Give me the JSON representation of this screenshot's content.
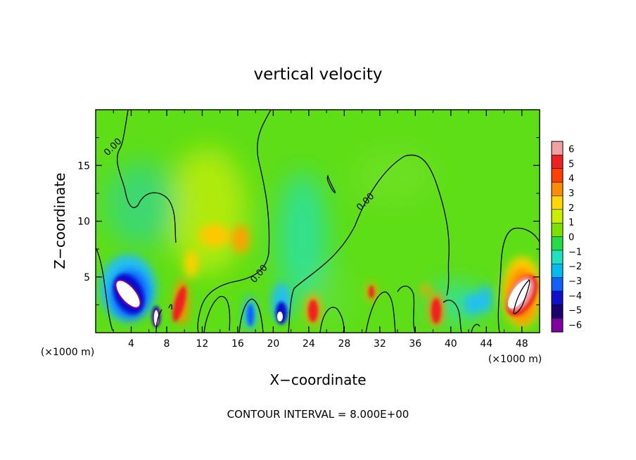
{
  "chart_data": {
    "type": "heatmap",
    "title": "vertical velocity",
    "xlabel": "X−coordinate",
    "ylabel": "Z−coordinate",
    "x_unit": "(×1000 m)",
    "z_unit": "(×1000 m)",
    "xlim": [
      0,
      50
    ],
    "ylim": [
      0,
      20
    ],
    "x_ticks": [
      "4",
      "8",
      "12",
      "16",
      "20",
      "24",
      "28",
      "32",
      "36",
      "40",
      "44",
      "48"
    ],
    "x_tick_values": [
      4,
      8,
      12,
      16,
      20,
      24,
      28,
      32,
      36,
      40,
      44,
      48
    ],
    "y_ticks": [
      "5",
      "10",
      "15"
    ],
    "y_tick_values": [
      5,
      10,
      15
    ],
    "colorbar": {
      "labels": [
        "6",
        "5",
        "4",
        "3",
        "2",
        "1",
        "0",
        "−1",
        "−2",
        "−3",
        "−4",
        "−5",
        "−6"
      ],
      "colors": [
        "#f0a0a0",
        "#ee2222",
        "#ff4000",
        "#ff8c00",
        "#ffd700",
        "#c8f000",
        "#7ce000",
        "#22dd44",
        "#20e0c0",
        "#00bbee",
        "#1060ff",
        "#1010cc",
        "#1a0070",
        "#8000a0"
      ]
    },
    "contour_labels": [
      "0.00",
      "0.00",
      "0.00"
    ],
    "features": [
      {
        "x": 4.8,
        "z": 3.5,
        "w": -6
      },
      {
        "x": 6.8,
        "z": 1.2,
        "w": -6
      },
      {
        "x": 9.5,
        "z": 2.5,
        "w": 4.5
      },
      {
        "x": 12.5,
        "z": 9.5,
        "w": 2
      },
      {
        "x": 16.5,
        "z": 8.5,
        "w": 2.5
      },
      {
        "x": 17.2,
        "z": 2.0,
        "w": -4
      },
      {
        "x": 21.0,
        "z": 1.6,
        "w": -6
      },
      {
        "x": 24.8,
        "z": 2.0,
        "w": 5
      },
      {
        "x": 30.8,
        "z": 3.0,
        "w": 4
      },
      {
        "x": 38.5,
        "z": 2.0,
        "w": 5
      },
      {
        "x": 43.5,
        "z": 2.5,
        "w": -3
      },
      {
        "x": 47.5,
        "z": 3.2,
        "w": 6
      }
    ]
  },
  "footer": {
    "contour_interval": "CONTOUR INTERVAL = 8.000E+00"
  }
}
